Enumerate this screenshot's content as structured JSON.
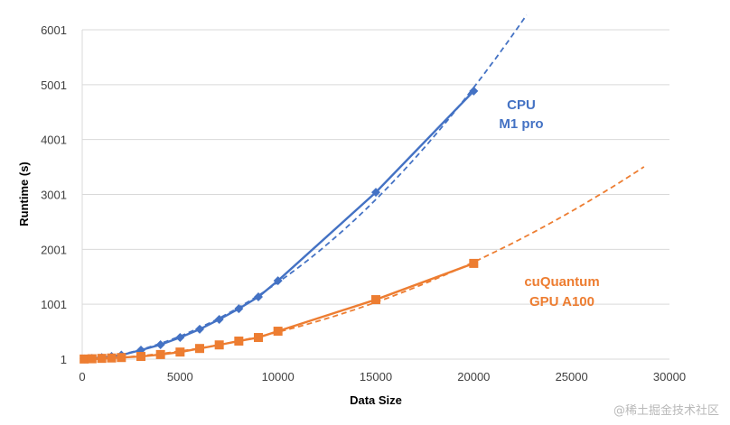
{
  "chart_data": {
    "type": "line",
    "title": "",
    "xlabel": "Data Size",
    "ylabel": "Runtime (s)",
    "xlim": [
      0,
      30000
    ],
    "ylim": [
      1,
      6001
    ],
    "xticks": [
      0,
      5000,
      10000,
      15000,
      20000,
      25000,
      30000
    ],
    "yticks": [
      1,
      1001,
      2001,
      3001,
      4001,
      5001,
      6001
    ],
    "grid": "horizontal",
    "legend": "none",
    "series": [
      {
        "name": "CPU M1 pro",
        "label_lines": [
          "CPU",
          "M1 pro"
        ],
        "color": "#4472C4",
        "marker": "diamond",
        "x": [
          100,
          500,
          1000,
          1500,
          2000,
          3000,
          4000,
          5000,
          6000,
          7000,
          8000,
          9000,
          10000,
          15000,
          20000
        ],
        "y": [
          5,
          15,
          30,
          50,
          75,
          165,
          265,
          395,
          545,
          725,
          920,
          1135,
          1430,
          3040,
          4885
        ],
        "trendline": {
          "type": "polynomial",
          "style": "dashed",
          "extends_to_x": 22700
        }
      },
      {
        "name": "cuQuantum GPU A100",
        "label_lines": [
          "cuQuantum",
          "GPU A100"
        ],
        "color": "#ED7D31",
        "marker": "square",
        "x": [
          100,
          500,
          1000,
          1500,
          2000,
          3000,
          4000,
          5000,
          6000,
          7000,
          8000,
          9000,
          10000,
          15000,
          20000
        ],
        "y": [
          3,
          8,
          15,
          22,
          30,
          50,
          85,
          130,
          195,
          260,
          330,
          395,
          510,
          1085,
          1745
        ],
        "trendline": {
          "type": "polynomial",
          "style": "dashed",
          "extends_to_x": 28800
        }
      }
    ]
  },
  "watermark": "@稀土掘金技术社区"
}
